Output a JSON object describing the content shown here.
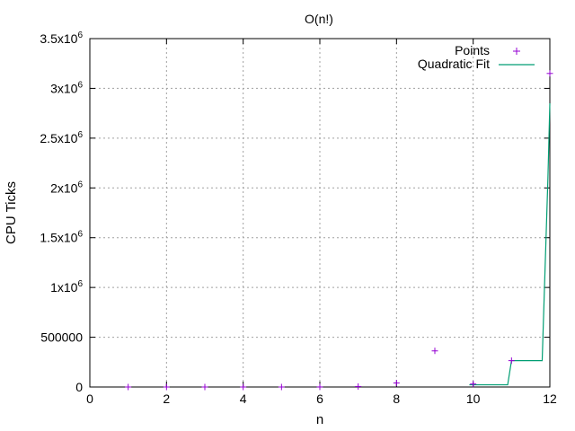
{
  "chart_data": {
    "type": "line",
    "title": "O(n!)",
    "xlabel": "n",
    "ylabel": "CPU Ticks",
    "xlim": [
      0,
      12
    ],
    "ylim": [
      0,
      3500000
    ],
    "grid": true,
    "legend_position": "top-right",
    "x_ticks": [
      {
        "value": 0,
        "label": "0"
      },
      {
        "value": 2,
        "label": "2"
      },
      {
        "value": 4,
        "label": "4"
      },
      {
        "value": 6,
        "label": "6"
      },
      {
        "value": 8,
        "label": "8"
      },
      {
        "value": 10,
        "label": "10"
      },
      {
        "value": 12,
        "label": "12"
      }
    ],
    "y_ticks": [
      {
        "value": 0,
        "base": "0",
        "exp": ""
      },
      {
        "value": 500000,
        "base": "500000",
        "exp": ""
      },
      {
        "value": 1000000,
        "base": "1x10",
        "exp": "6"
      },
      {
        "value": 1500000,
        "base": "1.5x10",
        "exp": "6"
      },
      {
        "value": 2000000,
        "base": "2x10",
        "exp": "6"
      },
      {
        "value": 2500000,
        "base": "2.5x10",
        "exp": "6"
      },
      {
        "value": 3000000,
        "base": "3x10",
        "exp": "6"
      },
      {
        "value": 3500000,
        "base": "3.5x10",
        "exp": "6"
      }
    ],
    "series": [
      {
        "name": "Points",
        "kind": "scatter",
        "marker": "+",
        "color": "#9400d3",
        "x": [
          1,
          2,
          3,
          4,
          5,
          6,
          7,
          8,
          9,
          10,
          11,
          12
        ],
        "y": [
          1,
          2,
          6,
          24,
          120,
          720,
          5040,
          40320,
          362880,
          30000,
          265000,
          3150000
        ]
      },
      {
        "name": "Quadratic Fit",
        "kind": "step-line",
        "color": "#009e73",
        "x": [
          9.9,
          10.9,
          11.0,
          11.8,
          11.95,
          12.0
        ],
        "y": [
          22000,
          22000,
          265000,
          265000,
          2100000,
          2850000
        ]
      }
    ]
  }
}
